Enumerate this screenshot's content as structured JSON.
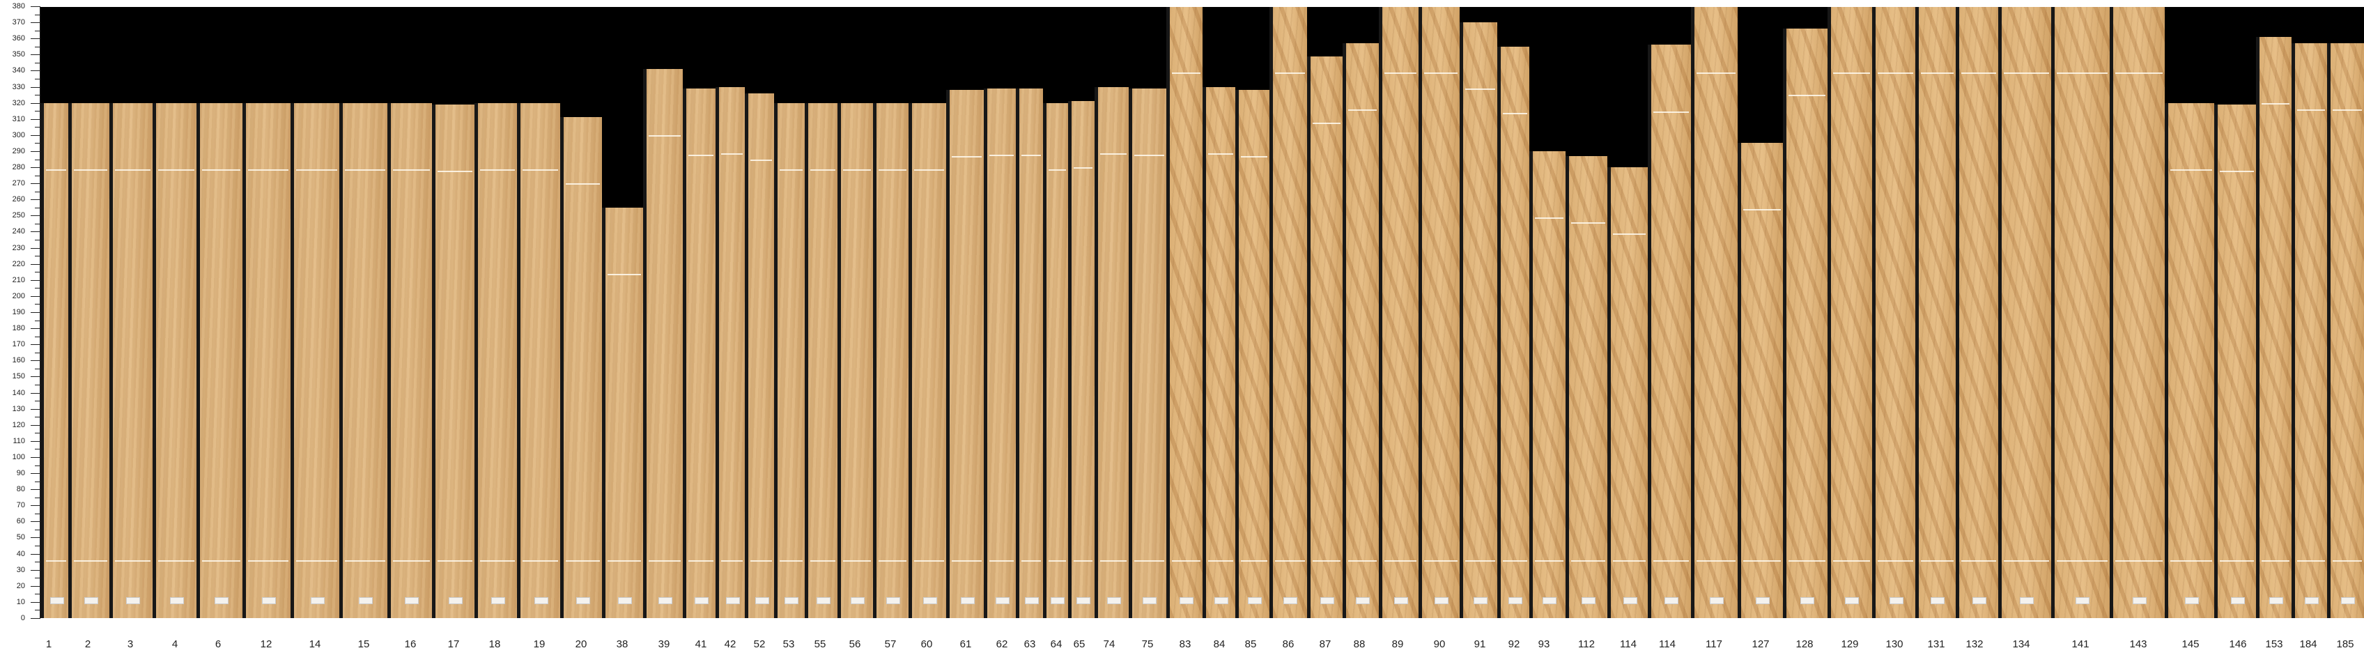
{
  "axis": {
    "min": 0,
    "max": 380,
    "major_step": 10,
    "minor_step": 5,
    "tick_labels": [
      "0",
      "10",
      "20",
      "30",
      "40",
      "50",
      "60",
      "70",
      "80",
      "90",
      "100",
      "110",
      "120",
      "130",
      "140",
      "150",
      "160",
      "170",
      "180",
      "190",
      "200",
      "210",
      "220",
      "230",
      "240",
      "250",
      "260",
      "270",
      "280",
      "290",
      "300",
      "310",
      "320",
      "330",
      "340",
      "350",
      "360",
      "370",
      "380"
    ]
  },
  "colors": {
    "background": "#000000",
    "gap": "#171717",
    "wood": "#dcb27c",
    "axis": "#222222"
  },
  "panels": [
    {
      "label": "1",
      "length": 320
    },
    {
      "label": "2",
      "length": 320
    },
    {
      "label": "3",
      "length": 320
    },
    {
      "label": "4",
      "length": 320
    },
    {
      "label": "6",
      "length": 320
    },
    {
      "label": "12",
      "length": 320
    },
    {
      "label": "14",
      "length": 320
    },
    {
      "label": "15",
      "length": 320
    },
    {
      "label": "16",
      "length": 320
    },
    {
      "label": "17",
      "length": 319
    },
    {
      "label": "18",
      "length": 320
    },
    {
      "label": "19",
      "length": 320
    },
    {
      "label": "20",
      "length": 311
    },
    {
      "label": "38",
      "length": 255
    },
    {
      "label": "39",
      "length": 341
    },
    {
      "label": "41",
      "length": 329
    },
    {
      "label": "42",
      "length": 330
    },
    {
      "label": "52",
      "length": 326
    },
    {
      "label": "53",
      "length": 320
    },
    {
      "label": "55",
      "length": 320
    },
    {
      "label": "56",
      "length": 320
    },
    {
      "label": "57",
      "length": 320
    },
    {
      "label": "60",
      "length": 320
    },
    {
      "label": "61",
      "length": 328
    },
    {
      "label": "62",
      "length": 329
    },
    {
      "label": "63",
      "length": 329
    },
    {
      "label": "64",
      "length": 320
    },
    {
      "label": "65",
      "length": 321
    },
    {
      "label": "74",
      "length": 330
    },
    {
      "label": "75",
      "length": 329
    },
    {
      "label": "83",
      "length": 380
    },
    {
      "label": "84",
      "length": 330
    },
    {
      "label": "85",
      "length": 328
    },
    {
      "label": "86",
      "length": 380
    },
    {
      "label": "87",
      "length": 349
    },
    {
      "label": "88",
      "length": 357
    },
    {
      "label": "89",
      "length": 380
    },
    {
      "label": "90",
      "length": 380
    },
    {
      "label": "91",
      "length": 370
    },
    {
      "label": "92",
      "length": 355
    },
    {
      "label": "93",
      "length": 290
    },
    {
      "label": "112",
      "length": 287
    },
    {
      "label": "114",
      "length": 280
    },
    {
      "label": "114",
      "length": 356
    },
    {
      "label": "117",
      "length": 380
    },
    {
      "label": "127",
      "length": 295
    },
    {
      "label": "128",
      "length": 366
    },
    {
      "label": "129",
      "length": 380
    },
    {
      "label": "130",
      "length": 380
    },
    {
      "label": "131",
      "length": 380
    },
    {
      "label": "132",
      "length": 380
    },
    {
      "label": "134",
      "length": 380
    },
    {
      "label": "141",
      "length": 380
    },
    {
      "label": "143",
      "length": 380
    },
    {
      "label": "145",
      "length": 320
    },
    {
      "label": "146",
      "length": 319
    },
    {
      "label": "153",
      "length": 361
    },
    {
      "label": "184",
      "length": 357
    },
    {
      "label": "185",
      "length": 357
    }
  ]
}
